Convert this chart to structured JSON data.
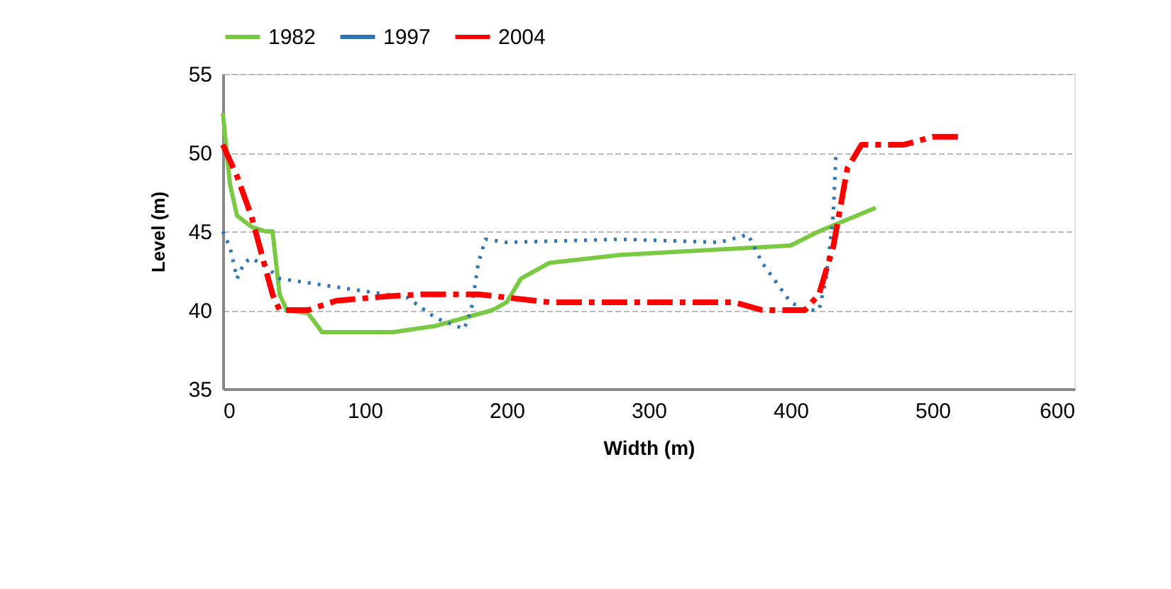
{
  "chart_data": {
    "type": "line",
    "xlabel": "Width (m)",
    "ylabel": "Level (m)",
    "xlim": [
      0,
      600
    ],
    "xticks": [
      0,
      100,
      200,
      300,
      400,
      500,
      600
    ],
    "ylim": [
      35,
      55
    ],
    "yticks": [
      35,
      40,
      45,
      50,
      55
    ],
    "grid": "y",
    "legend": "top",
    "marker": "none",
    "series": [
      {
        "name": "1982",
        "color": "#7ac943",
        "line_style": "solid",
        "x": [
          0,
          5,
          10,
          20,
          30,
          35,
          40,
          45,
          60,
          70,
          120,
          150,
          190,
          200,
          210,
          230,
          280,
          380,
          400,
          420,
          460
        ],
        "values": [
          52.5,
          48,
          46,
          45.3,
          45,
          45,
          41,
          40,
          39.8,
          38.6,
          38.6,
          39,
          40,
          40.5,
          42,
          43,
          43.5,
          44,
          44.1,
          45,
          46.5
        ]
      },
      {
        "name": "1997",
        "color": "#2e75b6",
        "line_style": "dotted",
        "x": [
          0,
          5,
          10,
          15,
          20,
          30,
          40,
          70,
          100,
          130,
          150,
          170,
          175,
          180,
          185,
          200,
          280,
          350,
          370,
          380,
          400,
          410,
          420,
          425,
          430,
          432
        ],
        "values": [
          45,
          44,
          42,
          43,
          43.3,
          42.8,
          42,
          41.6,
          41.2,
          40.8,
          39.5,
          38.8,
          40,
          43,
          44.5,
          44.3,
          44.5,
          44.3,
          44.8,
          43,
          40.5,
          40,
          40,
          42,
          46,
          50
        ]
      },
      {
        "name": "2004",
        "color": "#ff0000",
        "line_style": "dashed",
        "x": [
          0,
          10,
          20,
          35,
          40,
          60,
          80,
          120,
          140,
          180,
          200,
          230,
          280,
          300,
          330,
          360,
          380,
          410,
          420,
          430,
          440,
          450,
          480,
          500,
          520
        ],
        "values": [
          50.5,
          48.5,
          46,
          41,
          40,
          40,
          40.6,
          40.9,
          41,
          41,
          40.8,
          40.5,
          40.5,
          40.5,
          40.5,
          40.5,
          40,
          40,
          41,
          44,
          49,
          50.5,
          50.5,
          51,
          51
        ]
      }
    ]
  }
}
